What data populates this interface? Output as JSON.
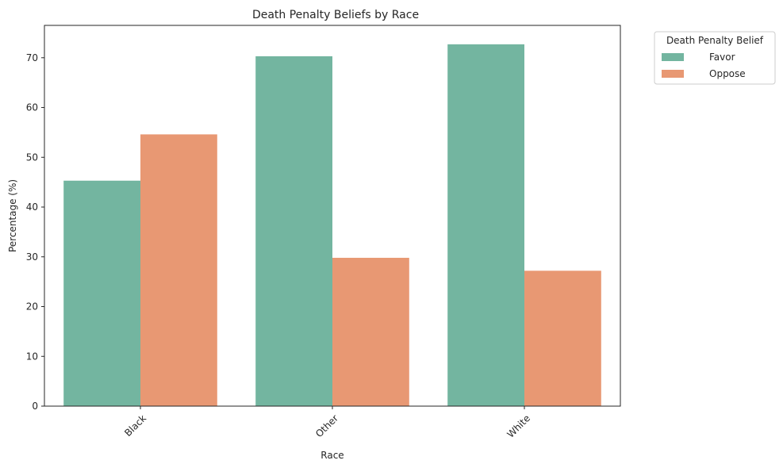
{
  "chart_data": {
    "type": "bar",
    "title": "Death Penalty Beliefs by Race",
    "xlabel": "Race",
    "ylabel": "Percentage (%)",
    "categories": [
      "Black",
      "Other",
      "White"
    ],
    "series": [
      {
        "name": "Favor",
        "color": "#73b5a0",
        "values": [
          45.3,
          70.3,
          72.7
        ]
      },
      {
        "name": "Oppose",
        "color": "#e89873",
        "values": [
          54.6,
          29.8,
          27.2
        ]
      }
    ],
    "ylim": [
      0,
      76.5
    ],
    "yticks": [
      0,
      10,
      20,
      30,
      40,
      50,
      60,
      70
    ],
    "legend": {
      "title": "Death Penalty Belief",
      "placement": "outside-top-right"
    },
    "grid": false
  }
}
